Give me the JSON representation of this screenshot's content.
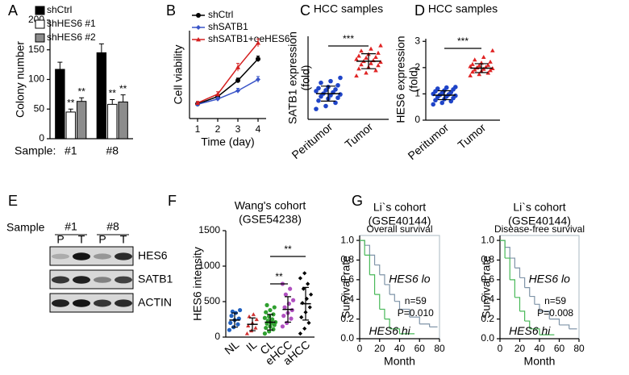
{
  "chart_data": [
    {
      "panel": "A",
      "type": "bar",
      "ylabel": "Colony number",
      "category_label": "Sample:",
      "categories": [
        "#1",
        "#8"
      ],
      "ylim": [
        0,
        200
      ],
      "yticks": [
        0,
        50,
        100,
        150,
        200
      ],
      "series": [
        {
          "name": "shCtrl",
          "color": "#000000",
          "values": [
            117,
            145
          ],
          "errors": [
            12,
            15
          ]
        },
        {
          "name": "shHES6 #1",
          "color": "#ffffff",
          "values": [
            45,
            58
          ],
          "errors": [
            5,
            8
          ],
          "significance": [
            "**",
            "**"
          ]
        },
        {
          "name": "shHES6 #2",
          "color": "#8c8c8c",
          "values": [
            63,
            62
          ],
          "errors": [
            6,
            12
          ],
          "significance": [
            "**",
            "**"
          ]
        }
      ]
    },
    {
      "panel": "B",
      "type": "line",
      "xlabel": "Time (day)",
      "ylabel": "Cell viability",
      "x": [
        1,
        2,
        3,
        4
      ],
      "xlim": [
        0.6,
        4.4
      ],
      "xticks": [
        1,
        2,
        3,
        4
      ],
      "ylim": [
        0,
        1.8
      ],
      "series": [
        {
          "name": "shCtrl",
          "color": "#000000",
          "marker": "circle",
          "values": [
            0.3,
            0.45,
            0.78,
            1.22
          ],
          "errors": [
            0.03,
            0.04,
            0.05,
            0.06
          ]
        },
        {
          "name": "shSATB1",
          "color": "#3a55c8",
          "marker": "diamond",
          "values": [
            0.29,
            0.4,
            0.57,
            0.8
          ],
          "errors": [
            0.03,
            0.04,
            0.05,
            0.06
          ]
        },
        {
          "name": "shSATB1+oeHES6",
          "color": "#d42020",
          "marker": "triangle",
          "values": [
            0.32,
            0.5,
            1.05,
            1.55
          ],
          "errors": [
            0.03,
            0.05,
            0.08,
            0.08
          ]
        }
      ]
    },
    {
      "panel": "C",
      "type": "dotplot",
      "title": "HCC samples",
      "ylabel": [
        "SATB1 expression",
        "(fold)"
      ],
      "categories": [
        "Peritumor",
        "Tumor"
      ],
      "colors": [
        "#1f44c8",
        "#e02424"
      ],
      "markers": [
        "circle",
        "triangle"
      ],
      "ylim": [
        0.4,
        2.4
      ],
      "means": [
        1.02,
        1.8
      ],
      "sds": [
        0.18,
        0.18
      ],
      "groups": [
        [
          0.65,
          0.72,
          0.8,
          0.85,
          0.9,
          0.92,
          0.95,
          0.98,
          1.0,
          1.02,
          1.05,
          1.08,
          1.1,
          1.12,
          1.15,
          1.18,
          1.22,
          1.28,
          1.32,
          1.4
        ],
        [
          1.45,
          1.52,
          1.58,
          1.62,
          1.66,
          1.7,
          1.72,
          1.75,
          1.78,
          1.8,
          1.82,
          1.85,
          1.88,
          1.9,
          1.93,
          1.97,
          2.0,
          2.05,
          2.1,
          2.18
        ]
      ],
      "brackets": [
        {
          "groups": [
            "Peritumor",
            "Tumor"
          ],
          "label": "***"
        }
      ]
    },
    {
      "panel": "D",
      "type": "dotplot",
      "title": "HCC samples",
      "ylabel": [
        "HES6 expression",
        "(fold)"
      ],
      "categories": [
        "Peritumor",
        "Tumor"
      ],
      "colors": [
        "#1f44c8",
        "#e02424"
      ],
      "markers": [
        "circle",
        "triangle"
      ],
      "ylim": [
        0,
        3.1
      ],
      "yticks": [
        0,
        1,
        2,
        3
      ],
      "means": [
        0.95,
        1.98
      ],
      "sds": [
        0.17,
        0.17
      ],
      "groups": [
        [
          0.6,
          0.66,
          0.72,
          0.76,
          0.8,
          0.84,
          0.88,
          0.9,
          0.93,
          0.96,
          0.98,
          1.0,
          1.03,
          1.06,
          1.1,
          1.13,
          1.17,
          1.2,
          1.24,
          1.26
        ],
        [
          1.7,
          1.75,
          1.8,
          1.84,
          1.87,
          1.9,
          1.92,
          1.95,
          1.97,
          2.0,
          2.02,
          2.05,
          2.08,
          2.1,
          2.13,
          2.18,
          2.22,
          2.3,
          2.4,
          2.65
        ]
      ],
      "brackets": [
        {
          "groups": [
            "Peritumor",
            "Tumor"
          ],
          "label": "***"
        }
      ]
    },
    {
      "panel": "E",
      "type": "blot",
      "sample_label": "Sample",
      "samples": [
        "#1",
        "#8"
      ],
      "lanes": [
        "P",
        "T",
        "P",
        "T"
      ],
      "rows": [
        "HES6",
        "SATB1",
        "ACTIN"
      ]
    },
    {
      "panel": "F",
      "type": "dotplot",
      "title": [
        "Wang's cohort",
        "(GSE54238)"
      ],
      "ylabel": [
        "HES6 intensity"
      ],
      "categories": [
        "NL",
        "IL",
        "CL",
        "eHCC",
        "aHCC"
      ],
      "colors": [
        "#2060c0",
        "#d03030",
        "#30a030",
        "#b050c0",
        "#000000"
      ],
      "markers": [
        "circle",
        "triangle",
        "circle",
        "circle",
        "diamond"
      ],
      "ylim": [
        0,
        1500
      ],
      "yticks": [
        0,
        500,
        1000,
        1500
      ],
      "means": [
        240,
        180,
        210,
        390,
        470
      ],
      "sds": [
        100,
        90,
        110,
        180,
        230
      ],
      "groups": [
        [
          100,
          140,
          180,
          200,
          240,
          260,
          300,
          340,
          380,
          360
        ],
        [
          50,
          90,
          130,
          160,
          200,
          250,
          290,
          320
        ],
        [
          50,
          80,
          110,
          130,
          150,
          170,
          190,
          200,
          210,
          230,
          250,
          270,
          290,
          320,
          350,
          380,
          420,
          450
        ],
        [
          150,
          200,
          260,
          300,
          340,
          380,
          420,
          470,
          520,
          600,
          680,
          750
        ],
        [
          50,
          120,
          200,
          280,
          350,
          420,
          480,
          540,
          600,
          680,
          750,
          830,
          900
        ]
      ],
      "brackets": [
        {
          "groups": [
            "CL",
            "eHCC"
          ],
          "label": "**"
        },
        {
          "groups": [
            "CL",
            "aHCC"
          ],
          "label": "**"
        }
      ]
    },
    {
      "panel": "G",
      "type": "survival",
      "title": [
        "Li`s cohort",
        "(GSE40144)"
      ],
      "subtitle": "Overall survival",
      "xlabel": "Month",
      "ylabel": "Survival rate",
      "xlim": [
        0,
        80
      ],
      "xticks": [
        0,
        20,
        40,
        60,
        80
      ],
      "ylim": [
        0,
        1.05
      ],
      "yticks": [
        {
          "value": 0,
          "label": "0.0"
        },
        0.2,
        0.4,
        0.6,
        0.8,
        {
          "value": 1,
          "label": "1.0"
        }
      ],
      "annotations": [
        "n=59",
        "P=0.010"
      ],
      "series": [
        {
          "name": "HES6 lo",
          "color": "#7f94a8",
          "label_color": "#3050c0",
          "x": [
            0,
            5,
            10,
            15,
            20,
            25,
            30,
            35,
            40,
            50,
            60,
            70,
            78
          ],
          "values": [
            1,
            0.95,
            0.85,
            0.75,
            0.65,
            0.55,
            0.45,
            0.38,
            0.3,
            0.22,
            0.15,
            0.12,
            0.12
          ]
        },
        {
          "name": "HES6 hi",
          "color": "#48b858",
          "label_color": "#30b050",
          "x": [
            0,
            5,
            10,
            15,
            20,
            25,
            30,
            40,
            55
          ],
          "values": [
            1,
            0.85,
            0.65,
            0.45,
            0.3,
            0.2,
            0.1,
            0.05,
            0.05
          ]
        }
      ]
    },
    {
      "type": "survival",
      "title": [
        "Li`s cohort",
        "(GSE40144)"
      ],
      "subtitle": "Disease-free survival",
      "xlabel": "Month",
      "ylabel": "Survival rate",
      "xlim": [
        0,
        80
      ],
      "xticks": [
        0,
        20,
        40,
        60,
        80
      ],
      "ylim": [
        0,
        1.05
      ],
      "yticks": [
        {
          "value": 0,
          "label": "0.0"
        },
        0.2,
        0.4,
        0.6,
        0.8,
        {
          "value": 1,
          "label": "1.0"
        }
      ],
      "annotations": [
        "n=59",
        "P=0.008"
      ],
      "series": [
        {
          "name": "HES6 lo",
          "color": "#7f94a8",
          "label_color": "#3050c0",
          "x": [
            0,
            5,
            10,
            15,
            20,
            25,
            30,
            35,
            40,
            50,
            60,
            70,
            78
          ],
          "values": [
            1,
            0.93,
            0.82,
            0.72,
            0.62,
            0.52,
            0.43,
            0.35,
            0.28,
            0.2,
            0.14,
            0.1,
            0.1
          ]
        },
        {
          "name": "HES6 hi",
          "color": "#48b858",
          "label_color": "#30b050",
          "x": [
            0,
            5,
            10,
            15,
            20,
            25,
            30,
            40,
            55
          ],
          "values": [
            1,
            0.82,
            0.6,
            0.42,
            0.28,
            0.18,
            0.1,
            0.04,
            0.04
          ]
        }
      ]
    }
  ]
}
